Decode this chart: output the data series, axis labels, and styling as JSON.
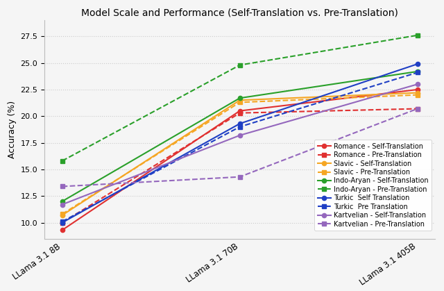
{
  "title": "Model Scale and Performance (Self-Translation vs. Pre-Translation)",
  "ylabel": "Accuracy (%)",
  "x_labels": [
    "LLama 3.1 8B",
    "LLama 3.1 70B",
    "LLama 3.1 405B"
  ],
  "x_positions": [
    0,
    1,
    2
  ],
  "ylim": [
    8.5,
    29
  ],
  "series": [
    {
      "label": "Romance - Self-Translation",
      "color": "#e03030",
      "linestyle": "-",
      "marker": "o",
      "values": [
        9.3,
        20.5,
        22.5
      ]
    },
    {
      "label": "Romance - Pre-Translation",
      "color": "#e03030",
      "linestyle": "--",
      "marker": "s",
      "values": [
        10.0,
        20.3,
        20.7
      ]
    },
    {
      "label": "Slavic - Self-Translation",
      "color": "#f5a623",
      "linestyle": "-",
      "marker": "o",
      "values": [
        10.7,
        21.5,
        22.2
      ]
    },
    {
      "label": "Slavic - Pre-Translation",
      "color": "#f5a623",
      "linestyle": "--",
      "marker": "s",
      "values": [
        10.8,
        21.3,
        22.0
      ]
    },
    {
      "label": "Indo-Aryan - Self-Translation",
      "color": "#2aa02a",
      "linestyle": "-",
      "marker": "o",
      "values": [
        12.0,
        21.7,
        24.2
      ]
    },
    {
      "label": "Indo-Aryan - Pre-Translation",
      "color": "#2aa02a",
      "linestyle": "--",
      "marker": "s",
      "values": [
        15.8,
        24.8,
        27.6
      ]
    },
    {
      "label": "Turkic  Self Translation",
      "color": "#1f3fc4",
      "linestyle": "-",
      "marker": "o",
      "values": [
        10.0,
        19.3,
        24.9
      ]
    },
    {
      "label": "Turkic  Pre Translation",
      "color": "#1f3fc4",
      "linestyle": "--",
      "marker": "s",
      "values": [
        10.1,
        19.0,
        24.1
      ]
    },
    {
      "label": "Kartvelian - Self-Translation",
      "color": "#9467bd",
      "linestyle": "-",
      "marker": "o",
      "values": [
        11.7,
        18.2,
        23.0
      ]
    },
    {
      "label": "Kartvelian - Pre-Translation",
      "color": "#9467bd",
      "linestyle": "--",
      "marker": "s",
      "values": [
        13.4,
        14.3,
        20.7
      ]
    }
  ],
  "background_color": "#f5f5f5",
  "grid_color": "#cccccc",
  "legend_fontsize": 7.0,
  "title_fontsize": 10,
  "label_fontsize": 9
}
